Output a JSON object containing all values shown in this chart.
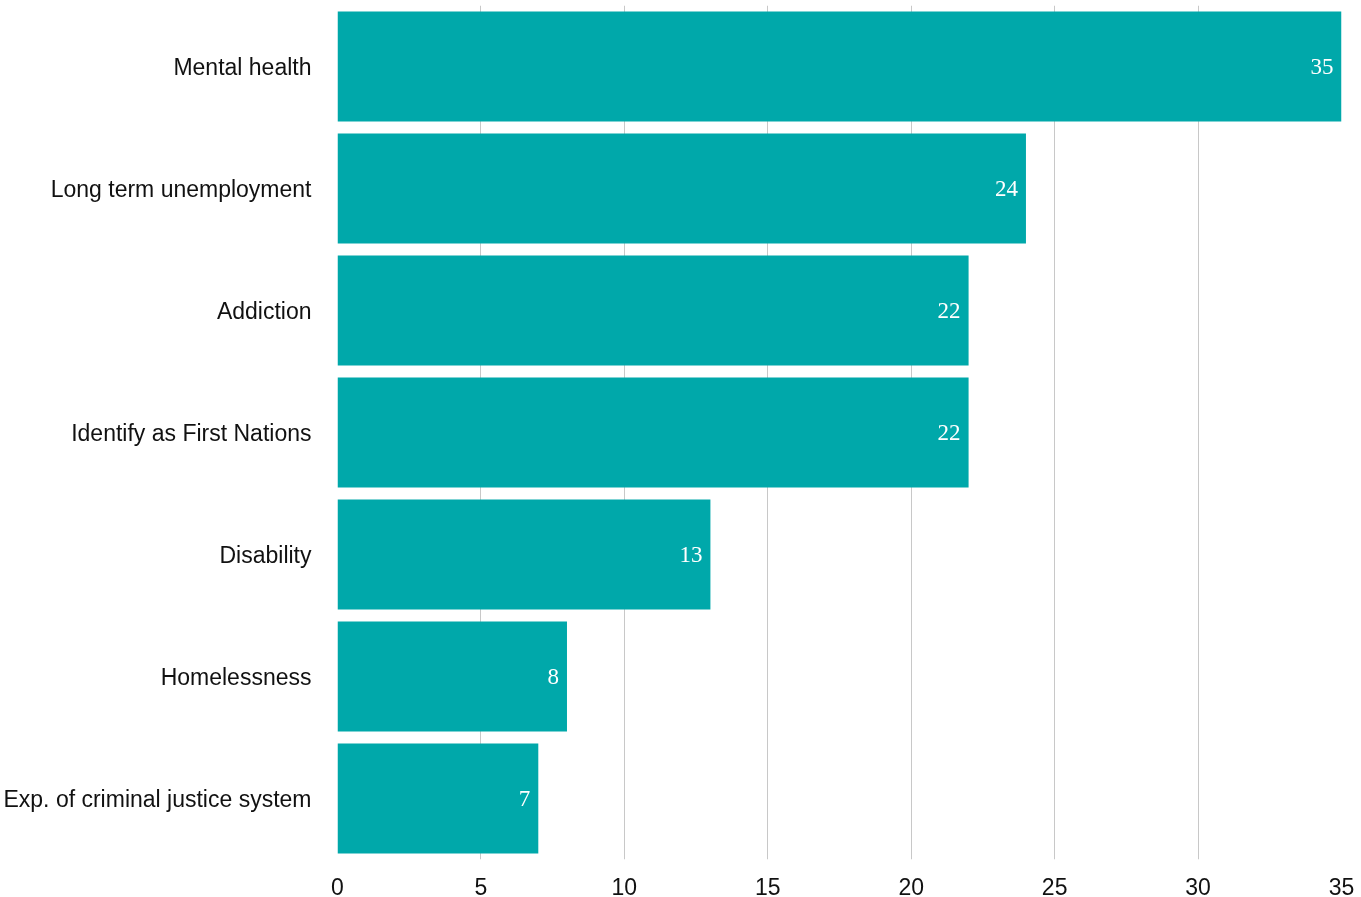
{
  "chart_data": {
    "type": "bar",
    "orientation": "horizontal",
    "categories": [
      "Mental health",
      "Long term unemployment",
      "Addiction",
      "Identify as First Nations",
      "Disability",
      "Homelessness",
      "Exp. of criminal justice system"
    ],
    "values": [
      35,
      24,
      22,
      22,
      13,
      8,
      7
    ],
    "color": "#00a8aa",
    "xlim": [
      0,
      35
    ],
    "xticks": [
      0,
      5,
      10,
      15,
      20,
      25,
      30,
      35
    ],
    "grid": "x",
    "data_labels": true
  }
}
